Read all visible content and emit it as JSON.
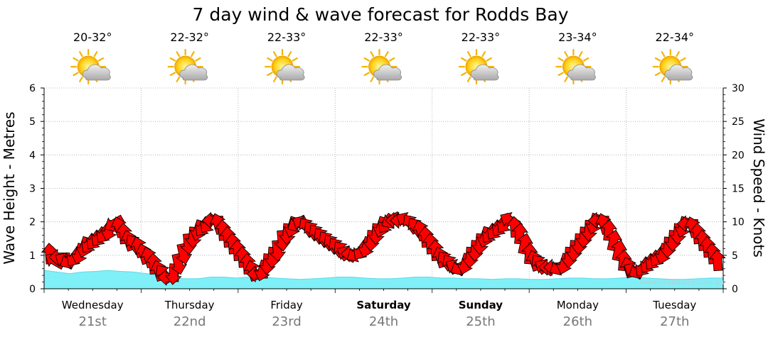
{
  "chart_data": {
    "type": "line",
    "title": "7 day wind & wave forecast for Rodds Bay",
    "left_axis": {
      "label": "Wave Height - Metres",
      "range": [
        0,
        6
      ],
      "ticks": [
        "0",
        "1",
        "2",
        "3",
        "4",
        "5",
        "6"
      ]
    },
    "right_axis": {
      "label": "Wind Speed - Knots",
      "range": [
        0,
        30
      ],
      "ticks": [
        "0",
        "5",
        "10",
        "15",
        "20",
        "25",
        "30"
      ]
    },
    "grid": true,
    "days": [
      {
        "day": "Wednesday",
        "date": "21st",
        "temp": "20-32°",
        "bold": false
      },
      {
        "day": "Thursday",
        "date": "22nd",
        "temp": "22-32°",
        "bold": false
      },
      {
        "day": "Friday",
        "date": "23rd",
        "temp": "22-33°",
        "bold": false
      },
      {
        "day": "Saturday",
        "date": "24th",
        "temp": "22-33°",
        "bold": true
      },
      {
        "day": "Sunday",
        "date": "25th",
        "temp": "22-33°",
        "bold": true
      },
      {
        "day": "Monday",
        "date": "26th",
        "temp": "23-34°",
        "bold": false
      },
      {
        "day": "Tuesday",
        "date": "27th",
        "temp": "22-34°",
        "bold": false
      }
    ],
    "weather_icon": "partly-cloudy-icon",
    "wave_color": "#80f0f8",
    "arrow_color": "#ff0000",
    "wave_height_m": [
      0.55,
      0.5,
      0.45,
      0.5,
      0.52,
      0.55,
      0.52,
      0.5,
      0.45,
      0.4,
      0.32,
      0.3,
      0.3,
      0.35,
      0.35,
      0.32,
      0.35,
      0.35,
      0.32,
      0.3,
      0.28,
      0.3,
      0.32,
      0.35,
      0.35,
      0.32,
      0.3,
      0.3,
      0.32,
      0.35,
      0.35,
      0.32,
      0.32,
      0.3,
      0.3,
      0.28,
      0.3,
      0.3,
      0.28,
      0.28,
      0.3,
      0.32,
      0.32,
      0.3,
      0.3,
      0.32,
      0.35,
      0.32,
      0.3,
      0.28,
      0.28,
      0.3,
      0.32,
      0.32
    ],
    "wind_speed_kt": [
      5,
      4,
      4.5,
      4,
      4,
      4.5,
      5,
      6,
      6.5,
      7,
      7.5,
      8,
      8.5,
      9.5,
      9,
      8,
      7,
      6.5,
      6,
      5,
      4.5,
      3.5,
      2.5,
      2,
      1.5,
      2,
      3.5,
      5,
      6.5,
      7.5,
      8.5,
      9,
      9.5,
      10,
      9.5,
      8.5,
      7.5,
      6.5,
      5.5,
      4.5,
      3.5,
      2.5,
      2,
      2.5,
      3.5,
      4.5,
      5.5,
      7,
      8,
      9,
      9.5,
      9.5,
      9,
      8.5,
      8,
      7.5,
      7,
      6.5,
      6,
      5.5,
      5,
      5,
      5,
      5.5,
      6,
      7,
      8,
      9,
      9.5,
      10,
      10,
      10,
      10,
      9.5,
      9,
      8.5,
      7.5,
      6.5,
      5.5,
      4.5,
      4,
      3.5,
      3,
      3,
      3.5,
      4.5,
      5.5,
      6.5,
      7.5,
      8,
      8.5,
      9,
      9.5,
      10,
      9,
      8,
      6.5,
      5,
      4,
      3.5,
      3,
      3,
      3,
      3,
      3.5,
      4.5,
      5.5,
      6.5,
      7.5,
      8.5,
      9.5,
      10,
      9.5,
      8.5,
      7,
      5.5,
      4,
      3,
      2.5,
      2.5,
      3,
      3.5,
      4,
      4.5,
      5,
      6,
      7,
      8,
      9,
      9.5,
      9,
      8,
      7,
      6,
      5,
      4
    ]
  }
}
